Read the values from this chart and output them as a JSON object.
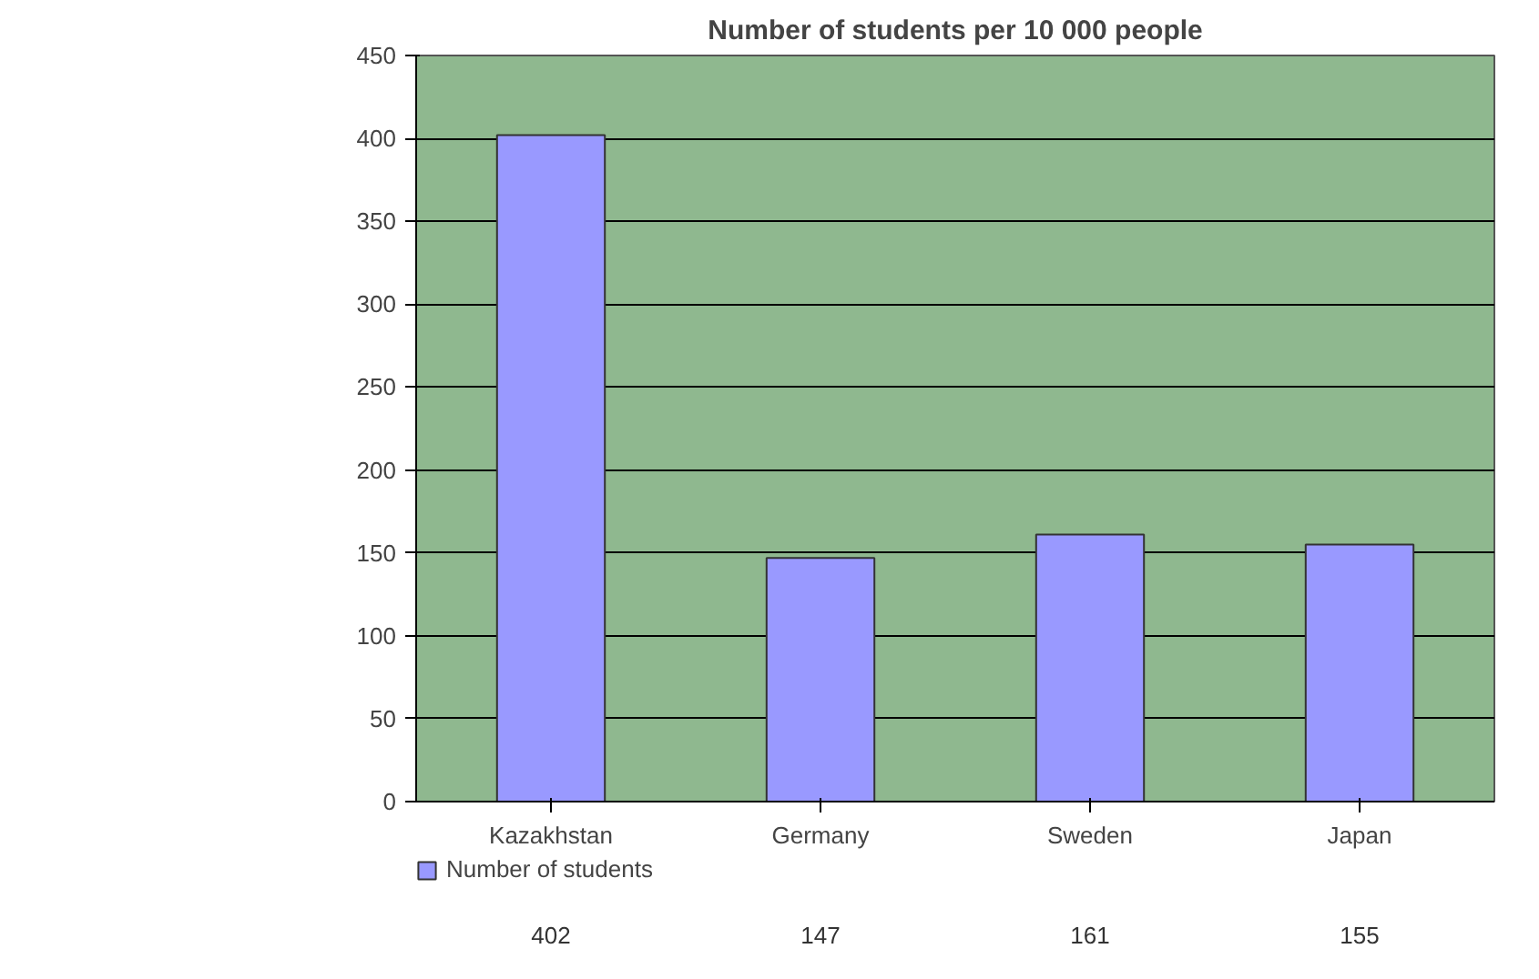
{
  "chart_data": {
    "type": "bar",
    "title": "Number of students per 10 000 people",
    "categories": [
      "Kazakhstan",
      "Germany",
      "Sweden",
      "Japan"
    ],
    "series": [
      {
        "name": "Number of students",
        "color": "#9999ff",
        "values": [
          402,
          147,
          161,
          155
        ]
      }
    ],
    "ylim": [
      0,
      450
    ],
    "yticks": [
      0,
      50,
      100,
      150,
      200,
      250,
      300,
      350,
      400,
      450
    ],
    "grid": "y",
    "legend": "bottom left",
    "data_labels": true
  }
}
